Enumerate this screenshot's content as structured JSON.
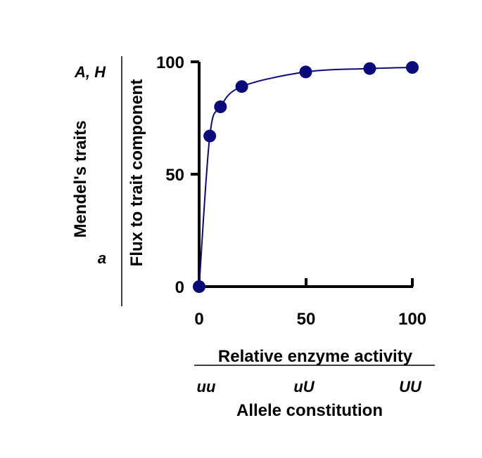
{
  "chart_data": {
    "type": "line",
    "x": [
      0,
      5,
      10,
      20,
      50,
      80,
      100
    ],
    "y": [
      0,
      67,
      80,
      89,
      95.5,
      97,
      97.5
    ],
    "xlim": [
      0,
      100
    ],
    "ylim": [
      0,
      100
    ],
    "xticks": [
      "0",
      "50",
      "100"
    ],
    "yticks": [
      "0",
      "50",
      "100"
    ],
    "xlabel": "Relative enzyme activity",
    "ylabel": "Flux to trait component",
    "secondary_xlabel": "Allele constitution",
    "secondary_xticks": [
      "uu",
      "uU",
      "UU"
    ],
    "secondary_ylabel": "Mendel's traits",
    "secondary_yticks": {
      "top": "A, H",
      "bottom": "a"
    },
    "grid": false,
    "marker": "circle",
    "colors": {
      "series": "#0a0a7a",
      "axis": "#000000"
    }
  }
}
